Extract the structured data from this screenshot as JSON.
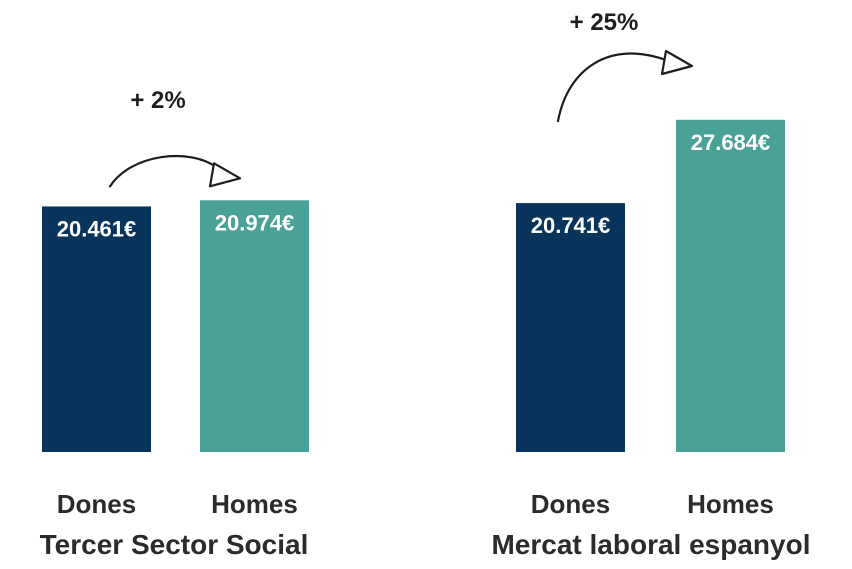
{
  "chart_data": [
    {
      "type": "bar",
      "title": "Tercer Sector Social",
      "categories": [
        "Dones",
        "Homes"
      ],
      "values": [
        20461,
        20974
      ],
      "value_labels": [
        "20.461€",
        "20.974€"
      ],
      "colors": [
        "#08335a",
        "#4aa197"
      ],
      "annotation": "+ 2%",
      "ylim": [
        0,
        29000
      ]
    },
    {
      "type": "bar",
      "title": "Mercat laboral espanyol",
      "categories": [
        "Dones",
        "Homes"
      ],
      "values": [
        20741,
        27684
      ],
      "value_labels": [
        "20.741€",
        "27.684€"
      ],
      "colors": [
        "#08335a",
        "#4aa197"
      ],
      "annotation": "+ 25%",
      "ylim": [
        0,
        29000
      ]
    }
  ]
}
